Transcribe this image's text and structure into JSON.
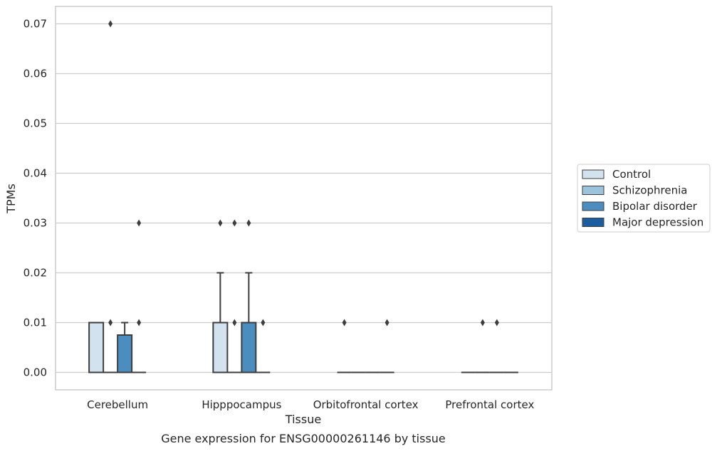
{
  "caption": "Gene expression for ENSG00000261146 by tissue",
  "chart_data": {
    "type": "box",
    "xlabel": "Tissue",
    "ylabel": "TPMs",
    "ylim": [
      -0.0035,
      0.0735
    ],
    "yticks": [
      0.0,
      0.01,
      0.02,
      0.03,
      0.04,
      0.05,
      0.06,
      0.07
    ],
    "ytick_labels": [
      "0.00",
      "0.01",
      "0.02",
      "0.03",
      "0.04",
      "0.05",
      "0.06",
      "0.07"
    ],
    "grid": "horizontal",
    "legend_position": "right",
    "categories": [
      "Cerebellum",
      "Hipppocampus",
      "Orbitofrontal cortex",
      "Prefrontal cortex"
    ],
    "series": [
      {
        "name": "Control",
        "color": "#d3e2ef",
        "boxes": [
          {
            "q1": 0.0,
            "median": 0.0,
            "q3": 0.01,
            "whisker_low": 0.0,
            "whisker_high": 0.01,
            "outliers": []
          },
          {
            "q1": 0.0,
            "median": 0.0,
            "q3": 0.01,
            "whisker_low": 0.0,
            "whisker_high": 0.02,
            "outliers": [
              0.03
            ]
          },
          {
            "q1": 0.0,
            "median": 0.0,
            "q3": 0.0,
            "whisker_low": 0.0,
            "whisker_high": 0.0,
            "outliers": [
              0.01
            ]
          },
          {
            "q1": 0.0,
            "median": 0.0,
            "q3": 0.0,
            "whisker_low": 0.0,
            "whisker_high": 0.0,
            "outliers": []
          }
        ]
      },
      {
        "name": "Schizophrenia",
        "color": "#9cc3dc",
        "boxes": [
          {
            "q1": 0.0,
            "median": 0.0,
            "q3": 0.0,
            "whisker_low": 0.0,
            "whisker_high": 0.0,
            "outliers": [
              0.01,
              0.07
            ]
          },
          {
            "q1": 0.0,
            "median": 0.0,
            "q3": 0.0,
            "whisker_low": 0.0,
            "whisker_high": 0.0,
            "outliers": [
              0.01,
              0.03
            ]
          },
          {
            "q1": 0.0,
            "median": 0.0,
            "q3": 0.0,
            "whisker_low": 0.0,
            "whisker_high": 0.0,
            "outliers": []
          },
          {
            "q1": 0.0,
            "median": 0.0,
            "q3": 0.0,
            "whisker_low": 0.0,
            "whisker_high": 0.0,
            "outliers": [
              0.01
            ]
          }
        ]
      },
      {
        "name": "Bipolar disorder",
        "color": "#4b8dbf",
        "boxes": [
          {
            "q1": 0.0,
            "median": 0.0,
            "q3": 0.0075,
            "whisker_low": 0.0,
            "whisker_high": 0.01,
            "outliers": []
          },
          {
            "q1": 0.0,
            "median": 0.0,
            "q3": 0.01,
            "whisker_low": 0.0,
            "whisker_high": 0.02,
            "outliers": [
              0.03
            ]
          },
          {
            "q1": 0.0,
            "median": 0.0,
            "q3": 0.0,
            "whisker_low": 0.0,
            "whisker_high": 0.0,
            "outliers": []
          },
          {
            "q1": 0.0,
            "median": 0.0,
            "q3": 0.0,
            "whisker_low": 0.0,
            "whisker_high": 0.0,
            "outliers": [
              0.01
            ]
          }
        ]
      },
      {
        "name": "Major depression",
        "color": "#1c5d9f",
        "boxes": [
          {
            "q1": 0.0,
            "median": 0.0,
            "q3": 0.0,
            "whisker_low": 0.0,
            "whisker_high": 0.0,
            "outliers": [
              0.01,
              0.03
            ]
          },
          {
            "q1": 0.0,
            "median": 0.0,
            "q3": 0.0,
            "whisker_low": 0.0,
            "whisker_high": 0.0,
            "outliers": [
              0.01
            ]
          },
          {
            "q1": 0.0,
            "median": 0.0,
            "q3": 0.0,
            "whisker_low": 0.0,
            "whisker_high": 0.0,
            "outliers": [
              0.01
            ]
          },
          {
            "q1": 0.0,
            "median": 0.0,
            "q3": 0.0,
            "whisker_low": 0.0,
            "whisker_high": 0.0,
            "outliers": []
          }
        ]
      }
    ]
  }
}
